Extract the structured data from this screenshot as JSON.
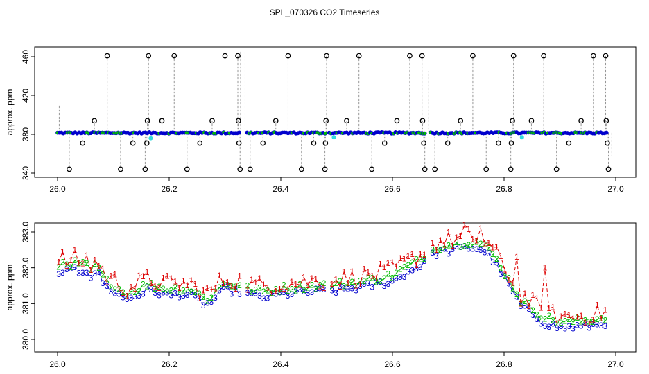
{
  "title": "SPL_070326  CO2 Timeseries",
  "colors": {
    "red": "#dd0000",
    "green": "#00bb00",
    "blue": "#0000cc",
    "cyan": "#33dddd",
    "grey": "#888888"
  },
  "chart_data": [
    {
      "type": "scatter",
      "name": "full-range timeseries",
      "ylabel": "approx. ppm",
      "xlabel": "",
      "xlim": [
        26.0,
        27.0
      ],
      "ylim": [
        340,
        465
      ],
      "xticks": [
        26.0,
        26.2,
        26.4,
        26.6,
        26.8,
        27.0
      ],
      "xtick_labels": [
        "26.0",
        "26.2",
        "26.4",
        "26.6",
        "26.8",
        "27.0"
      ],
      "yticks": [
        340,
        380,
        420,
        460
      ],
      "ytick_labels": [
        "340",
        "380",
        "420",
        "460"
      ],
      "baseline_level": 381.5,
      "gap_intervals": [
        [
          26.328,
          26.336
        ],
        [
          26.48,
          26.486
        ],
        [
          26.659,
          26.668
        ]
      ],
      "outliers": [
        {
          "x": 26.021,
          "y": 344
        },
        {
          "x": 26.045,
          "y": 371
        },
        {
          "x": 26.066,
          "y": 394
        },
        {
          "x": 26.089,
          "y": 461
        },
        {
          "x": 26.113,
          "y": 344
        },
        {
          "x": 26.135,
          "y": 371
        },
        {
          "x": 26.157,
          "y": 344
        },
        {
          "x": 26.16,
          "y": 371
        },
        {
          "x": 26.161,
          "y": 394
        },
        {
          "x": 26.163,
          "y": 461
        },
        {
          "x": 26.187,
          "y": 394
        },
        {
          "x": 26.209,
          "y": 461
        },
        {
          "x": 26.232,
          "y": 344
        },
        {
          "x": 26.255,
          "y": 371
        },
        {
          "x": 26.277,
          "y": 394
        },
        {
          "x": 26.3,
          "y": 461
        },
        {
          "x": 26.323,
          "y": 461
        },
        {
          "x": 26.324,
          "y": 394
        },
        {
          "x": 26.325,
          "y": 371
        },
        {
          "x": 26.327,
          "y": 344
        },
        {
          "x": 26.345,
          "y": 344
        },
        {
          "x": 26.368,
          "y": 371
        },
        {
          "x": 26.391,
          "y": 394
        },
        {
          "x": 26.413,
          "y": 461
        },
        {
          "x": 26.437,
          "y": 344
        },
        {
          "x": 26.459,
          "y": 371
        },
        {
          "x": 26.482,
          "y": 461
        },
        {
          "x": 26.481,
          "y": 394
        },
        {
          "x": 26.48,
          "y": 371
        },
        {
          "x": 26.479,
          "y": 344
        },
        {
          "x": 26.518,
          "y": 394
        },
        {
          "x": 26.54,
          "y": 461
        },
        {
          "x": 26.563,
          "y": 344
        },
        {
          "x": 26.586,
          "y": 371
        },
        {
          "x": 26.608,
          "y": 394
        },
        {
          "x": 26.631,
          "y": 461
        },
        {
          "x": 26.653,
          "y": 461
        },
        {
          "x": 26.654,
          "y": 394
        },
        {
          "x": 26.656,
          "y": 371
        },
        {
          "x": 26.658,
          "y": 344
        },
        {
          "x": 26.676,
          "y": 344
        },
        {
          "x": 26.699,
          "y": 371
        },
        {
          "x": 26.722,
          "y": 394
        },
        {
          "x": 26.744,
          "y": 461
        },
        {
          "x": 26.768,
          "y": 344
        },
        {
          "x": 26.79,
          "y": 371
        },
        {
          "x": 26.812,
          "y": 344
        },
        {
          "x": 26.813,
          "y": 371
        },
        {
          "x": 26.815,
          "y": 394
        },
        {
          "x": 26.817,
          "y": 461
        },
        {
          "x": 26.849,
          "y": 394
        },
        {
          "x": 26.871,
          "y": 461
        },
        {
          "x": 26.894,
          "y": 344
        },
        {
          "x": 26.916,
          "y": 371
        },
        {
          "x": 26.938,
          "y": 394
        },
        {
          "x": 26.96,
          "y": 461
        },
        {
          "x": 26.982,
          "y": 461
        },
        {
          "x": 26.983,
          "y": 394
        },
        {
          "x": 26.985,
          "y": 371
        },
        {
          "x": 26.987,
          "y": 344
        }
      ],
      "cyan_markers": [
        {
          "x": 26.167,
          "y": 376
        },
        {
          "x": 26.495,
          "y": 377
        },
        {
          "x": 26.832,
          "y": 377
        }
      ],
      "legend": "none"
    },
    {
      "type": "line",
      "name": "zoomed channels",
      "ylabel": "approx. ppm",
      "xlabel": "",
      "xlim": [
        26.0,
        27.0
      ],
      "ylim": [
        379.9,
        383.4
      ],
      "xticks": [
        26.0,
        26.2,
        26.4,
        26.6,
        26.8,
        27.0
      ],
      "xtick_labels": [
        "26.0",
        "26.2",
        "26.4",
        "26.6",
        "26.8",
        "27.0"
      ],
      "yticks": [
        380.0,
        381.0,
        382.0,
        383.0
      ],
      "ytick_labels": [
        "380.0",
        "381.0",
        "382.0",
        "383.0"
      ],
      "markers": [
        "1",
        "2",
        "3"
      ],
      "series_curve": {
        "x": [
          26.0,
          26.01,
          26.02,
          26.03,
          26.04,
          26.05,
          26.06,
          26.07,
          26.08,
          26.09,
          26.1,
          26.12,
          26.14,
          26.16,
          26.18,
          26.2,
          26.22,
          26.24,
          26.26,
          26.27,
          26.28,
          26.3,
          26.31,
          26.33,
          26.35,
          26.37,
          26.4,
          26.45,
          26.5,
          26.55,
          26.6,
          26.62,
          26.64,
          26.65,
          26.66,
          26.68,
          26.7,
          26.72,
          26.74,
          26.76,
          26.78,
          26.8,
          26.82,
          26.83,
          26.85,
          26.87,
          26.9,
          26.95,
          26.985
        ],
        "y": [
          381.8,
          382.05,
          381.9,
          382.05,
          381.95,
          382.05,
          381.85,
          382.0,
          381.7,
          381.5,
          381.45,
          381.2,
          381.3,
          381.45,
          381.4,
          381.3,
          381.35,
          381.3,
          381.1,
          381.05,
          381.2,
          381.5,
          381.45,
          381.4,
          381.3,
          381.25,
          381.35,
          381.4,
          381.45,
          381.55,
          381.7,
          381.9,
          382.05,
          382.15,
          382.3,
          382.5,
          382.55,
          382.6,
          382.65,
          382.6,
          382.3,
          381.8,
          381.3,
          381.0,
          380.8,
          380.55,
          380.4,
          380.45,
          380.55
        ]
      },
      "series": [
        {
          "name": "1",
          "offset": 0.22,
          "noise": 0.25,
          "color_key": "red",
          "spikes": [
            [
              26.73,
              383.2
            ],
            [
              26.745,
              382.8
            ],
            [
              26.76,
              383.1
            ],
            [
              26.82,
              382.3
            ],
            [
              26.875,
              382.0
            ]
          ]
        },
        {
          "name": "2",
          "offset": 0.08,
          "noise": 0.1,
          "color_key": "green",
          "spikes": []
        },
        {
          "name": "3",
          "offset": -0.08,
          "noise": 0.1,
          "color_key": "blue",
          "spikes": []
        }
      ],
      "gap_intervals": [
        [
          26.328,
          26.336
        ],
        [
          26.48,
          26.486
        ],
        [
          26.659,
          26.668
        ]
      ],
      "legend": "none"
    }
  ]
}
